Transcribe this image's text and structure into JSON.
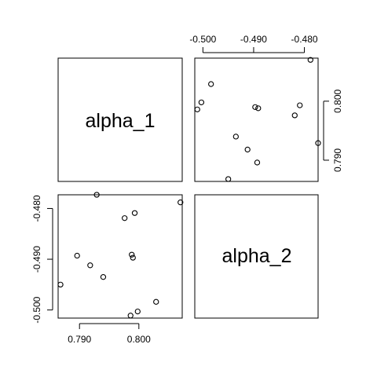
{
  "chart_data": {
    "type": "scatter",
    "kind": "pairs",
    "variables": [
      "alpha_1",
      "alpha_2"
    ],
    "alpha_1": {
      "range": [
        0.7864,
        0.8073
      ],
      "ticks": [
        0.79,
        0.8
      ],
      "tick_labels": [
        "0.790",
        "0.800"
      ]
    },
    "alpha_2": {
      "range": [
        -0.5016,
        -0.4773
      ],
      "ticks": [
        -0.5,
        -0.49,
        -0.48
      ],
      "tick_labels": [
        "-0.500",
        "-0.490",
        "-0.480"
      ]
    },
    "points": [
      {
        "alpha_1": 0.807,
        "alpha_2": -0.4788
      },
      {
        "alpha_1": 0.7993,
        "alpha_2": -0.4809
      },
      {
        "alpha_1": 0.7976,
        "alpha_2": -0.4819
      },
      {
        "alpha_1": 0.7988,
        "alpha_2": -0.4891
      },
      {
        "alpha_1": 0.799,
        "alpha_2": -0.4897
      },
      {
        "alpha_1": 0.7896,
        "alpha_2": -0.4893
      },
      {
        "alpha_1": 0.7918,
        "alpha_2": -0.4912
      },
      {
        "alpha_1": 0.794,
        "alpha_2": -0.4935
      },
      {
        "alpha_1": 0.7868,
        "alpha_2": -0.495
      },
      {
        "alpha_1": 0.8029,
        "alpha_2": -0.4984
      },
      {
        "alpha_1": 0.7998,
        "alpha_2": -0.5003
      },
      {
        "alpha_1": 0.7986,
        "alpha_2": -0.5011
      },
      {
        "alpha_1": 0.7929,
        "alpha_2": -0.4773
      }
    ]
  }
}
